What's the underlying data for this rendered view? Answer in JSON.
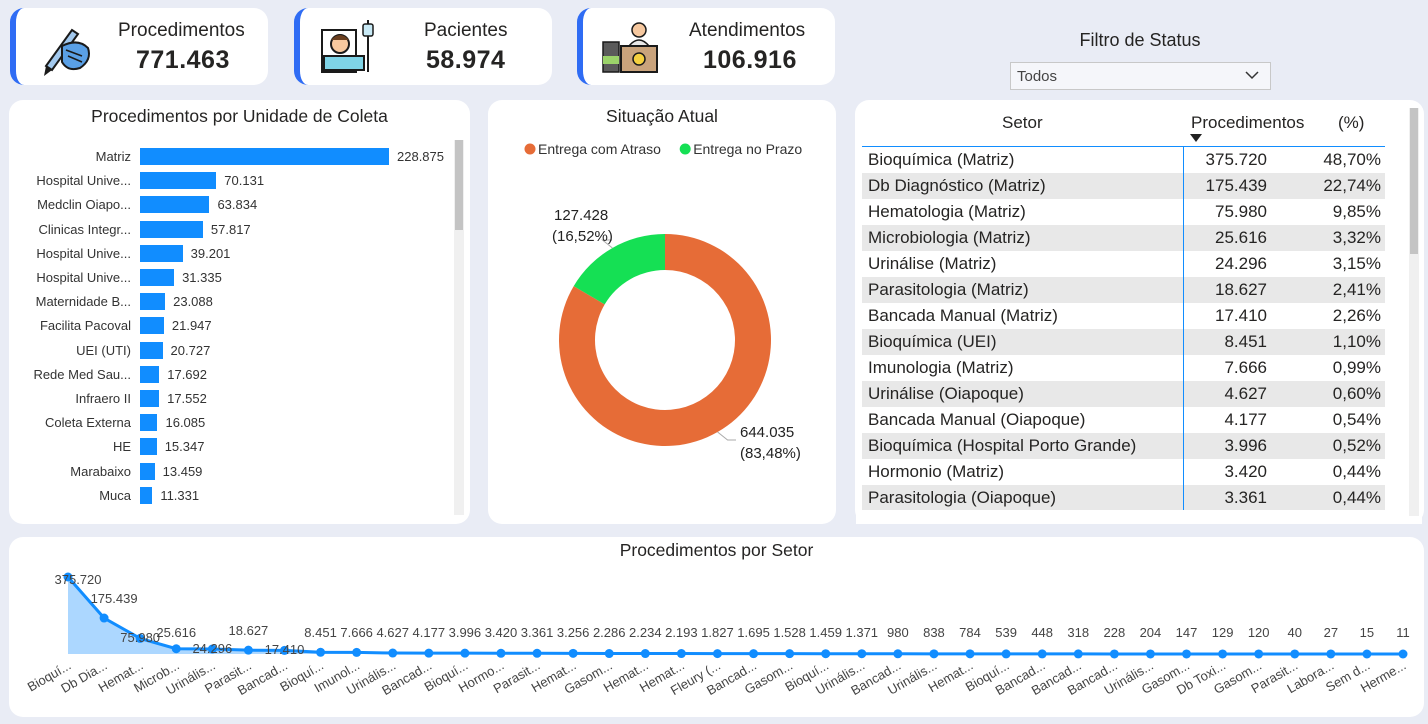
{
  "kpis": [
    {
      "label": "Procedimentos",
      "value": "771.463",
      "icon": "surgery-hand-icon"
    },
    {
      "label": "Pacientes",
      "value": "58.974",
      "icon": "hospital-patient-icon"
    },
    {
      "label": "Atendimentos",
      "value": "106.916",
      "icon": "reception-desk-icon"
    }
  ],
  "filter": {
    "title": "Filtro de Status",
    "selected": "Todos"
  },
  "unit_chart": {
    "title": "Procedimentos por Unidade de Coleta",
    "chart_data": {
      "type": "bar",
      "orientation": "horizontal",
      "categories": [
        "Matriz",
        "Hospital Unive...",
        "Medclin Oiapo...",
        "Clinicas Integr...",
        "Hospital Unive...",
        "Hospital Unive...",
        "Maternidade B...",
        "Facilita Pacoval",
        "UEI (UTI)",
        "Rede Med Sau...",
        "Infraero II",
        "Coleta Externa",
        "HE",
        "Marabaixo",
        "Muca"
      ],
      "values": [
        228875,
        70131,
        63834,
        57817,
        39201,
        31335,
        23088,
        21947,
        20727,
        17692,
        17552,
        16085,
        15347,
        13459,
        11331
      ],
      "labels": [
        "228.875",
        "70.131",
        "63.834",
        "57.817",
        "39.201",
        "31.335",
        "23.088",
        "21.947",
        "20.727",
        "17.692",
        "17.552",
        "16.085",
        "15.347",
        "13.459",
        "11.331"
      ],
      "color": "#118dff"
    }
  },
  "status_chart": {
    "title": "Situação Atual",
    "chart_data": {
      "type": "pie",
      "donut": true,
      "series": [
        {
          "name": "Entrega com Atraso",
          "value": 644035,
          "label_value": "644.035",
          "label_pct": "(83,48%)",
          "color": "#e66c37"
        },
        {
          "name": "Entrega no Prazo",
          "value": 127428,
          "label_value": "127.428",
          "label_pct": "(16,52%)",
          "color": "#15e054"
        }
      ]
    }
  },
  "sector_table": {
    "headers": [
      "Setor",
      "Procedimentos",
      "(%)"
    ],
    "rows": [
      [
        "Bioquímica (Matriz)",
        "375.720",
        "48,70%"
      ],
      [
        "Db Diagnóstico (Matriz)",
        "175.439",
        "22,74%"
      ],
      [
        "Hematologia (Matriz)",
        "75.980",
        "9,85%"
      ],
      [
        "Microbiologia (Matriz)",
        "25.616",
        "3,32%"
      ],
      [
        "Urinálise (Matriz)",
        "24.296",
        "3,15%"
      ],
      [
        "Parasitologia (Matriz)",
        "18.627",
        "2,41%"
      ],
      [
        "Bancada Manual (Matriz)",
        "17.410",
        "2,26%"
      ],
      [
        "Bioquímica (UEI)",
        "8.451",
        "1,10%"
      ],
      [
        "Imunologia (Matriz)",
        "7.666",
        "0,99%"
      ],
      [
        "Urinálise (Oiapoque)",
        "4.627",
        "0,60%"
      ],
      [
        "Bancada Manual (Oiapoque)",
        "4.177",
        "0,54%"
      ],
      [
        "Bioquímica (Hospital Porto Grande)",
        "3.996",
        "0,52%"
      ],
      [
        "Hormonio (Matriz)",
        "3.420",
        "0,44%"
      ],
      [
        "Parasitologia (Oiapoque)",
        "3.361",
        "0,44%"
      ]
    ]
  },
  "sector_chart": {
    "title": "Procedimentos por Setor",
    "chart_data": {
      "type": "area",
      "categories": [
        "Bioquí...",
        "Db Dia...",
        "Hemat...",
        "Microb...",
        "Urinális...",
        "Parasit...",
        "Bancad...",
        "Bioquí...",
        "Imunol...",
        "Urinális...",
        "Bancad...",
        "Bioquí...",
        "Hormo...",
        "Parasit...",
        "Hemat...",
        "Gasom...",
        "Hemat...",
        "Hemat...",
        "Fleury (...",
        "Bancad...",
        "Gasom...",
        "Bioquí...",
        "Urinális...",
        "Bancad...",
        "Urinális...",
        "Hemat...",
        "Bioquí...",
        "Bancad...",
        "Bancad...",
        "Bancad...",
        "Urinális...",
        "Gasom...",
        "Db Toxi...",
        "Gasom...",
        "Parasit...",
        "Labora...",
        "Sem d...",
        "Herme..."
      ],
      "values": [
        375720,
        175439,
        75980,
        25616,
        24296,
        18627,
        17410,
        8451,
        7666,
        4627,
        4177,
        3996,
        3420,
        3361,
        3256,
        2286,
        2234,
        2193,
        1827,
        1695,
        1528,
        1459,
        1371,
        980,
        838,
        784,
        539,
        448,
        318,
        228,
        204,
        147,
        129,
        120,
        40,
        27,
        15,
        11
      ],
      "labels": [
        "375.720",
        "175.439",
        "75.980",
        "25.616",
        "24.296",
        "18.627",
        "17.410",
        "8.451",
        "7.666",
        "4.627",
        "4.177",
        "3.996",
        "3.420",
        "3.361",
        "3.256",
        "2.286",
        "2.234",
        "2.193",
        "1.827",
        "1.695",
        "1.528",
        "1.459",
        "1.371",
        "980",
        "838",
        "784",
        "539",
        "448",
        "318",
        "228",
        "204",
        "147",
        "129",
        "120",
        "40",
        "27",
        "15",
        "11"
      ],
      "color": "#118dff"
    }
  }
}
